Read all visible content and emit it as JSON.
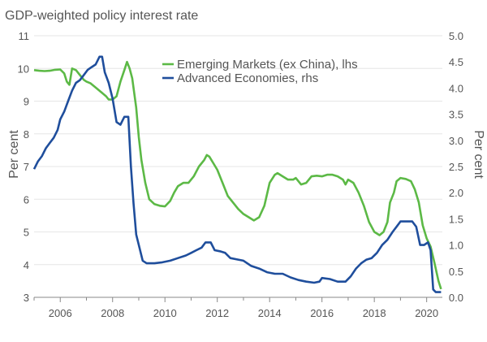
{
  "chart_data": {
    "type": "line",
    "title": "GDP-weighted policy interest rate",
    "ylabel_left": "Per cent",
    "ylabel_right": "Per cent",
    "x_ticks": [
      "2006",
      "2008",
      "2010",
      "2012",
      "2014",
      "2016",
      "2018",
      "2020"
    ],
    "xlim": [
      2005,
      2020.6
    ],
    "ylim_left": [
      3,
      11
    ],
    "ylim_right": [
      0,
      5
    ],
    "y_ticks_left": [
      "3",
      "4",
      "5",
      "6",
      "7",
      "8",
      "9",
      "10",
      "11"
    ],
    "y_ticks_right": [
      "0.0",
      "0.5",
      "1.0",
      "1.5",
      "2.0",
      "2.5",
      "3.0",
      "3.5",
      "4.0",
      "4.5",
      "5.0"
    ],
    "legend_position": "top-center",
    "series": [
      {
        "name": "Emerging Markets (ex China), lhs",
        "axis": "left",
        "color": "#5cb946",
        "points": [
          [
            2005.0,
            9.95
          ],
          [
            2005.2,
            9.93
          ],
          [
            2005.4,
            9.92
          ],
          [
            2005.6,
            9.93
          ],
          [
            2005.8,
            9.96
          ],
          [
            2006.0,
            9.97
          ],
          [
            2006.15,
            9.85
          ],
          [
            2006.25,
            9.6
          ],
          [
            2006.35,
            9.5
          ],
          [
            2006.45,
            10.0
          ],
          [
            2006.6,
            9.95
          ],
          [
            2006.75,
            9.8
          ],
          [
            2006.9,
            9.65
          ],
          [
            2007.0,
            9.6
          ],
          [
            2007.15,
            9.55
          ],
          [
            2007.3,
            9.45
          ],
          [
            2007.45,
            9.35
          ],
          [
            2007.6,
            9.25
          ],
          [
            2007.75,
            9.15
          ],
          [
            2007.85,
            9.05
          ],
          [
            2008.0,
            9.05
          ],
          [
            2008.15,
            9.15
          ],
          [
            2008.3,
            9.6
          ],
          [
            2008.45,
            9.95
          ],
          [
            2008.55,
            10.2
          ],
          [
            2008.65,
            10.0
          ],
          [
            2008.75,
            9.7
          ],
          [
            2008.9,
            8.8
          ],
          [
            2009.0,
            7.9
          ],
          [
            2009.1,
            7.2
          ],
          [
            2009.25,
            6.5
          ],
          [
            2009.4,
            6.0
          ],
          [
            2009.6,
            5.85
          ],
          [
            2009.8,
            5.8
          ],
          [
            2010.0,
            5.78
          ],
          [
            2010.2,
            5.95
          ],
          [
            2010.35,
            6.2
          ],
          [
            2010.5,
            6.4
          ],
          [
            2010.7,
            6.5
          ],
          [
            2010.9,
            6.5
          ],
          [
            2011.1,
            6.7
          ],
          [
            2011.3,
            7.0
          ],
          [
            2011.5,
            7.2
          ],
          [
            2011.6,
            7.35
          ],
          [
            2011.7,
            7.3
          ],
          [
            2011.85,
            7.1
          ],
          [
            2012.0,
            6.9
          ],
          [
            2012.2,
            6.5
          ],
          [
            2012.4,
            6.1
          ],
          [
            2012.6,
            5.9
          ],
          [
            2012.8,
            5.7
          ],
          [
            2013.0,
            5.55
          ],
          [
            2013.2,
            5.45
          ],
          [
            2013.4,
            5.35
          ],
          [
            2013.6,
            5.45
          ],
          [
            2013.8,
            5.8
          ],
          [
            2014.0,
            6.5
          ],
          [
            2014.2,
            6.75
          ],
          [
            2014.3,
            6.8
          ],
          [
            2014.5,
            6.7
          ],
          [
            2014.7,
            6.6
          ],
          [
            2014.9,
            6.6
          ],
          [
            2015.0,
            6.65
          ],
          [
            2015.2,
            6.45
          ],
          [
            2015.4,
            6.5
          ],
          [
            2015.6,
            6.7
          ],
          [
            2015.8,
            6.72
          ],
          [
            2016.0,
            6.7
          ],
          [
            2016.2,
            6.75
          ],
          [
            2016.4,
            6.75
          ],
          [
            2016.6,
            6.7
          ],
          [
            2016.8,
            6.6
          ],
          [
            2016.9,
            6.45
          ],
          [
            2017.0,
            6.6
          ],
          [
            2017.2,
            6.5
          ],
          [
            2017.4,
            6.2
          ],
          [
            2017.6,
            5.8
          ],
          [
            2017.8,
            5.3
          ],
          [
            2018.0,
            5.0
          ],
          [
            2018.2,
            4.9
          ],
          [
            2018.35,
            5.0
          ],
          [
            2018.5,
            5.3
          ],
          [
            2018.6,
            5.9
          ],
          [
            2018.75,
            6.2
          ],
          [
            2018.85,
            6.55
          ],
          [
            2019.0,
            6.65
          ],
          [
            2019.2,
            6.62
          ],
          [
            2019.4,
            6.55
          ],
          [
            2019.55,
            6.3
          ],
          [
            2019.7,
            5.9
          ],
          [
            2019.85,
            5.2
          ],
          [
            2020.0,
            4.8
          ],
          [
            2020.15,
            4.55
          ],
          [
            2020.3,
            4.05
          ],
          [
            2020.45,
            3.5
          ],
          [
            2020.55,
            3.25
          ]
        ]
      },
      {
        "name": "Advanced Economies, rhs",
        "axis": "right",
        "color": "#1f4e9c",
        "points": [
          [
            2005.0,
            2.45
          ],
          [
            2005.15,
            2.6
          ],
          [
            2005.3,
            2.7
          ],
          [
            2005.45,
            2.85
          ],
          [
            2005.6,
            2.95
          ],
          [
            2005.75,
            3.05
          ],
          [
            2005.9,
            3.2
          ],
          [
            2006.0,
            3.4
          ],
          [
            2006.15,
            3.55
          ],
          [
            2006.3,
            3.75
          ],
          [
            2006.45,
            3.95
          ],
          [
            2006.6,
            4.1
          ],
          [
            2006.75,
            4.15
          ],
          [
            2006.9,
            4.25
          ],
          [
            2007.05,
            4.35
          ],
          [
            2007.2,
            4.4
          ],
          [
            2007.35,
            4.45
          ],
          [
            2007.5,
            4.6
          ],
          [
            2007.6,
            4.6
          ],
          [
            2007.7,
            4.3
          ],
          [
            2007.85,
            4.1
          ],
          [
            2008.0,
            3.8
          ],
          [
            2008.15,
            3.35
          ],
          [
            2008.3,
            3.3
          ],
          [
            2008.45,
            3.45
          ],
          [
            2008.6,
            3.45
          ],
          [
            2008.7,
            2.5
          ],
          [
            2008.8,
            1.8
          ],
          [
            2008.9,
            1.2
          ],
          [
            2009.0,
            1.0
          ],
          [
            2009.15,
            0.7
          ],
          [
            2009.3,
            0.65
          ],
          [
            2009.6,
            0.65
          ],
          [
            2009.9,
            0.67
          ],
          [
            2010.2,
            0.7
          ],
          [
            2010.5,
            0.75
          ],
          [
            2010.8,
            0.8
          ],
          [
            2011.0,
            0.85
          ],
          [
            2011.2,
            0.9
          ],
          [
            2011.4,
            0.95
          ],
          [
            2011.55,
            1.05
          ],
          [
            2011.75,
            1.05
          ],
          [
            2011.9,
            0.9
          ],
          [
            2012.1,
            0.88
          ],
          [
            2012.3,
            0.85
          ],
          [
            2012.5,
            0.75
          ],
          [
            2012.8,
            0.72
          ],
          [
            2013.0,
            0.7
          ],
          [
            2013.3,
            0.6
          ],
          [
            2013.6,
            0.55
          ],
          [
            2013.9,
            0.48
          ],
          [
            2014.2,
            0.45
          ],
          [
            2014.5,
            0.45
          ],
          [
            2014.8,
            0.38
          ],
          [
            2015.1,
            0.33
          ],
          [
            2015.4,
            0.3
          ],
          [
            2015.7,
            0.28
          ],
          [
            2015.9,
            0.3
          ],
          [
            2016.0,
            0.37
          ],
          [
            2016.3,
            0.35
          ],
          [
            2016.6,
            0.3
          ],
          [
            2016.9,
            0.3
          ],
          [
            2017.1,
            0.4
          ],
          [
            2017.3,
            0.55
          ],
          [
            2017.5,
            0.65
          ],
          [
            2017.7,
            0.72
          ],
          [
            2017.9,
            0.75
          ],
          [
            2018.1,
            0.85
          ],
          [
            2018.3,
            1.0
          ],
          [
            2018.5,
            1.1
          ],
          [
            2018.7,
            1.25
          ],
          [
            2018.85,
            1.35
          ],
          [
            2019.0,
            1.45
          ],
          [
            2019.2,
            1.45
          ],
          [
            2019.45,
            1.45
          ],
          [
            2019.6,
            1.35
          ],
          [
            2019.75,
            1.0
          ],
          [
            2019.9,
            1.0
          ],
          [
            2020.05,
            1.05
          ],
          [
            2020.15,
            0.9
          ],
          [
            2020.25,
            0.15
          ],
          [
            2020.35,
            0.1
          ],
          [
            2020.55,
            0.1
          ]
        ]
      }
    ]
  }
}
